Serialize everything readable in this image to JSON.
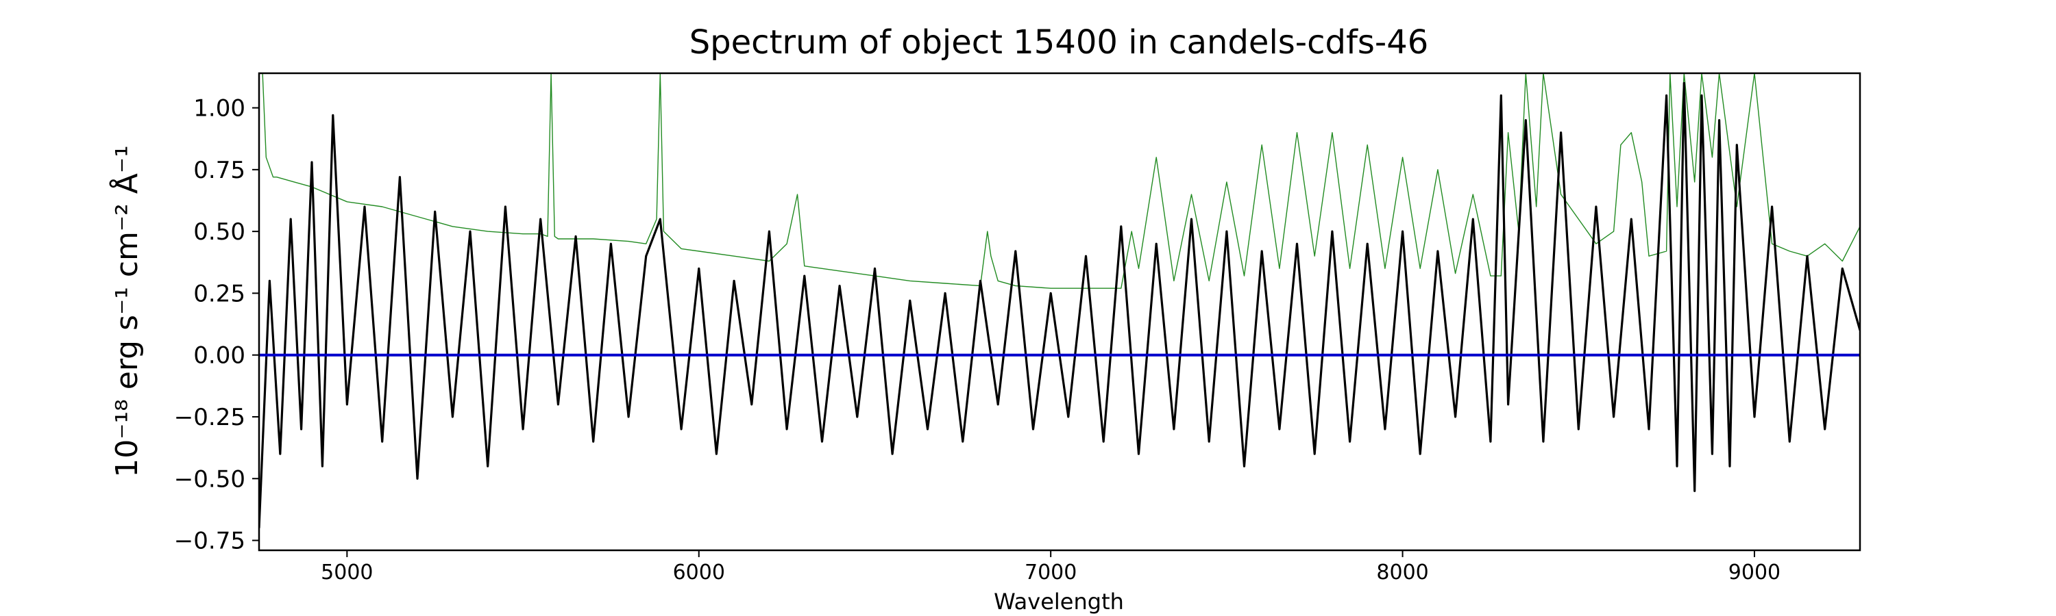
{
  "chart_data": {
    "type": "line",
    "title": "Spectrum of object 15400 in candels-cdfs-46",
    "xlabel": "Wavelength",
    "ylabel": "10⁻¹⁸ erg s⁻¹ cm⁻² Å⁻¹",
    "xlim": [
      4750,
      9300
    ],
    "ylim": [
      -0.79,
      1.14
    ],
    "x_ticks": [
      5000,
      6000,
      7000,
      8000,
      9000
    ],
    "x_tick_labels": [
      "5000",
      "6000",
      "7000",
      "8000",
      "9000"
    ],
    "y_ticks": [
      -0.75,
      -0.5,
      -0.25,
      0.0,
      0.25,
      0.5,
      0.75,
      1.0
    ],
    "y_tick_labels": [
      "−0.75",
      "−0.50",
      "−0.25",
      "0.00",
      "0.25",
      "0.50",
      "0.75",
      "1.00"
    ],
    "grid": false,
    "legend": "none",
    "series": [
      {
        "color": "#000000",
        "role": "flux",
        "x": [
          4750,
          4780,
          4810,
          4840,
          4870,
          4900,
          4930,
          4960,
          5000,
          5050,
          5100,
          5150,
          5200,
          5250,
          5300,
          5350,
          5400,
          5450,
          5500,
          5550,
          5600,
          5650,
          5700,
          5750,
          5800,
          5850,
          5890,
          5950,
          6000,
          6050,
          6100,
          6150,
          6200,
          6250,
          6300,
          6350,
          6400,
          6450,
          6500,
          6550,
          6600,
          6650,
          6700,
          6750,
          6800,
          6850,
          6900,
          6950,
          7000,
          7050,
          7100,
          7150,
          7200,
          7250,
          7300,
          7350,
          7400,
          7450,
          7500,
          7550,
          7600,
          7650,
          7700,
          7750,
          7800,
          7850,
          7900,
          7950,
          8000,
          8050,
          8100,
          8150,
          8200,
          8250,
          8280,
          8300,
          8350,
          8400,
          8450,
          8500,
          8550,
          8600,
          8650,
          8700,
          8750,
          8780,
          8800,
          8830,
          8850,
          8880,
          8900,
          8930,
          8950,
          9000,
          9050,
          9100,
          9150,
          9200,
          9250,
          9300
        ],
        "values": [
          -0.7,
          0.3,
          -0.4,
          0.55,
          -0.3,
          0.78,
          -0.45,
          0.97,
          -0.2,
          0.6,
          -0.35,
          0.72,
          -0.5,
          0.58,
          -0.25,
          0.5,
          -0.45,
          0.6,
          -0.3,
          0.55,
          -0.2,
          0.48,
          -0.35,
          0.45,
          -0.25,
          0.4,
          0.55,
          -0.3,
          0.35,
          -0.4,
          0.3,
          -0.2,
          0.5,
          -0.3,
          0.32,
          -0.35,
          0.28,
          -0.25,
          0.35,
          -0.4,
          0.22,
          -0.3,
          0.25,
          -0.35,
          0.3,
          -0.2,
          0.42,
          -0.3,
          0.25,
          -0.25,
          0.4,
          -0.35,
          0.52,
          -0.4,
          0.45,
          -0.3,
          0.55,
          -0.35,
          0.5,
          -0.45,
          0.42,
          -0.3,
          0.45,
          -0.4,
          0.5,
          -0.35,
          0.45,
          -0.3,
          0.5,
          -0.4,
          0.42,
          -0.25,
          0.55,
          -0.35,
          1.05,
          -0.2,
          0.95,
          -0.35,
          0.9,
          -0.3,
          0.6,
          -0.25,
          0.55,
          -0.3,
          1.05,
          -0.45,
          1.1,
          -0.55,
          1.05,
          -0.4,
          0.95,
          -0.45,
          0.85,
          -0.25,
          0.6,
          -0.35,
          0.4,
          -0.3,
          0.35,
          0.1
        ]
      },
      {
        "color": "#228b22",
        "role": "error",
        "x": [
          4750,
          4760,
          4770,
          4790,
          4800,
          4850,
          4900,
          5000,
          5100,
          5200,
          5300,
          5400,
          5500,
          5550,
          5570,
          5580,
          5590,
          5600,
          5700,
          5800,
          5850,
          5880,
          5890,
          5900,
          5950,
          6000,
          6100,
          6200,
          6250,
          6280,
          6300,
          6350,
          6400,
          6500,
          6600,
          6700,
          6800,
          6820,
          6830,
          6850,
          6900,
          7000,
          7100,
          7200,
          7230,
          7250,
          7300,
          7350,
          7400,
          7450,
          7500,
          7550,
          7600,
          7650,
          7700,
          7750,
          7800,
          7850,
          7900,
          7950,
          8000,
          8050,
          8100,
          8150,
          8200,
          8250,
          8280,
          8300,
          8330,
          8350,
          8380,
          8400,
          8450,
          8500,
          8550,
          8600,
          8620,
          8650,
          8680,
          8700,
          8750,
          8760,
          8780,
          8800,
          8830,
          8850,
          8880,
          8900,
          8950,
          9000,
          9050,
          9100,
          9150,
          9200,
          9250,
          9300
        ],
        "values": [
          1.14,
          1.14,
          0.8,
          0.72,
          0.72,
          0.7,
          0.68,
          0.62,
          0.6,
          0.56,
          0.52,
          0.5,
          0.49,
          0.49,
          0.48,
          1.14,
          0.48,
          0.47,
          0.47,
          0.46,
          0.45,
          0.55,
          1.14,
          0.5,
          0.43,
          0.42,
          0.4,
          0.38,
          0.45,
          0.65,
          0.36,
          0.35,
          0.34,
          0.32,
          0.3,
          0.29,
          0.28,
          0.5,
          0.4,
          0.3,
          0.28,
          0.27,
          0.27,
          0.27,
          0.5,
          0.35,
          0.8,
          0.3,
          0.65,
          0.3,
          0.7,
          0.32,
          0.85,
          0.35,
          0.9,
          0.4,
          0.9,
          0.35,
          0.85,
          0.35,
          0.8,
          0.35,
          0.75,
          0.33,
          0.65,
          0.32,
          0.32,
          0.9,
          0.5,
          1.14,
          0.6,
          1.14,
          0.65,
          0.55,
          0.45,
          0.5,
          0.85,
          0.9,
          0.7,
          0.4,
          0.42,
          1.14,
          0.6,
          1.14,
          0.7,
          1.14,
          0.8,
          1.14,
          0.6,
          1.14,
          0.45,
          0.42,
          0.4,
          0.45,
          0.38,
          0.52
        ]
      },
      {
        "color": "#0000cc",
        "role": "model",
        "x": [
          4750,
          9300
        ],
        "values": [
          0.0,
          0.0
        ]
      }
    ]
  }
}
